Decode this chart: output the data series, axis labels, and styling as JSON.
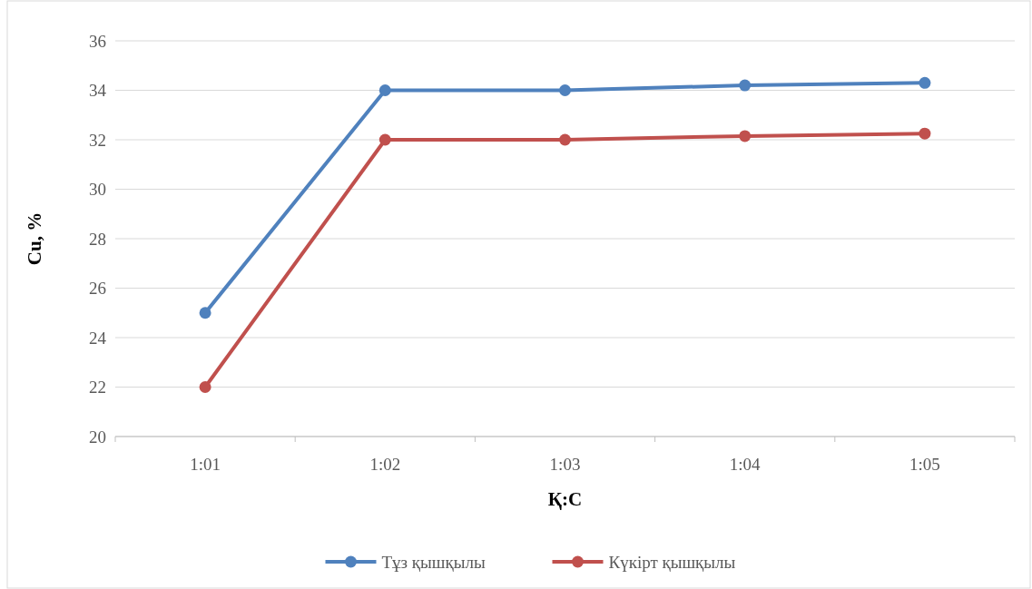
{
  "chart_data": {
    "type": "line",
    "xlabel": "Қ:С",
    "ylabel": "Cu, %",
    "categories": [
      "1:01",
      "1:02",
      "1:03",
      "1:04",
      "1:05"
    ],
    "series": [
      {
        "name": "Тұз қышқылы",
        "color": "#4f81bd",
        "values": [
          25,
          34,
          34,
          34.2,
          34.3
        ]
      },
      {
        "name": "Күкірт қышқылы",
        "color": "#c0504d",
        "values": [
          22,
          32,
          32,
          32.15,
          32.25
        ]
      }
    ],
    "ylim": [
      20,
      36
    ],
    "yticks": [
      20,
      22,
      24,
      26,
      28,
      30,
      32,
      34,
      36
    ],
    "grid": "y",
    "legend": "bottom",
    "marker": "circle",
    "line_style": "solid"
  }
}
